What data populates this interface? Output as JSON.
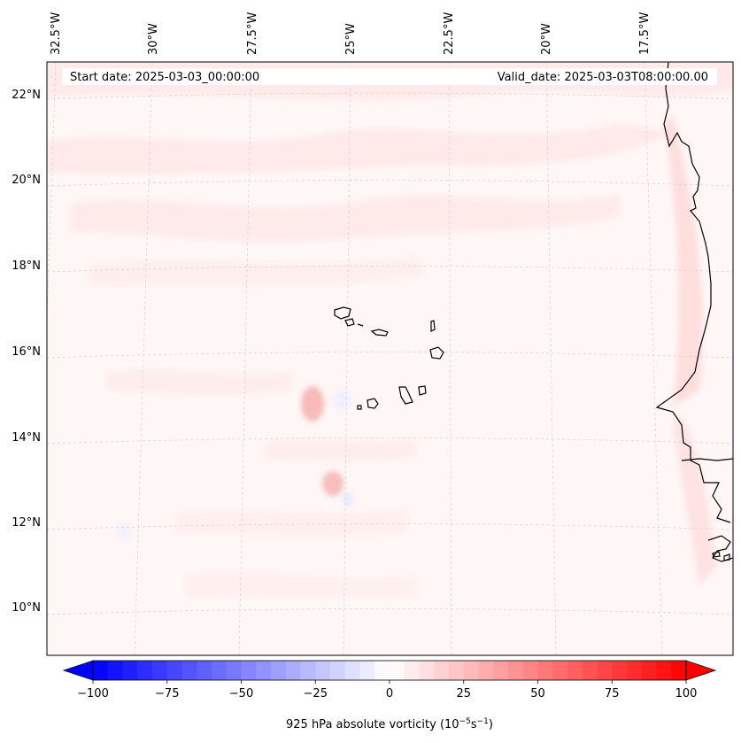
{
  "header": {
    "start_date": "Start date: 2025-03-03_00:00:00",
    "valid_date": "Valid_date: 2025-03-03T08:00:00.00"
  },
  "lon_ticks": [
    {
      "label": "32.5°W",
      "lon": -32.5
    },
    {
      "label": "30°W",
      "lon": -30
    },
    {
      "label": "27.5°W",
      "lon": -27.5
    },
    {
      "label": "25°W",
      "lon": -25
    },
    {
      "label": "22.5°W",
      "lon": -22.5
    },
    {
      "label": "20°W",
      "lon": -20
    },
    {
      "label": "17.5°W",
      "lon": -17.5
    }
  ],
  "lat_ticks": [
    {
      "label": "22°N",
      "lat": 22
    },
    {
      "label": "20°N",
      "lat": 20
    },
    {
      "label": "18°N",
      "lat": 18
    },
    {
      "label": "16°N",
      "lat": 16
    },
    {
      "label": "14°N",
      "lat": 14
    },
    {
      "label": "12°N",
      "lat": 12
    },
    {
      "label": "10°N",
      "lat": 10
    }
  ],
  "colorbar": {
    "label": "925 hPa absolute vorticity (10",
    "label_exp1": "−5",
    "label_mid": "s",
    "label_exp2": "−1",
    "label_end": ")",
    "min": -100,
    "max": 100,
    "step": 5,
    "extend": "both",
    "colormap": "bwr",
    "ticks": [
      {
        "label": "−100",
        "value": -100
      },
      {
        "label": "−75",
        "value": -75
      },
      {
        "label": "−50",
        "value": -50
      },
      {
        "label": "−25",
        "value": -25
      },
      {
        "label": "0",
        "value": 0
      },
      {
        "label": "25",
        "value": 25
      },
      {
        "label": "50",
        "value": 50
      },
      {
        "label": "75",
        "value": 75
      },
      {
        "label": "100",
        "value": 100
      }
    ]
  },
  "colors": {
    "negative_end": "#0000ff",
    "positive_end": "#ff0000",
    "coastline": "#000000",
    "gridline": "#cccccc"
  }
}
